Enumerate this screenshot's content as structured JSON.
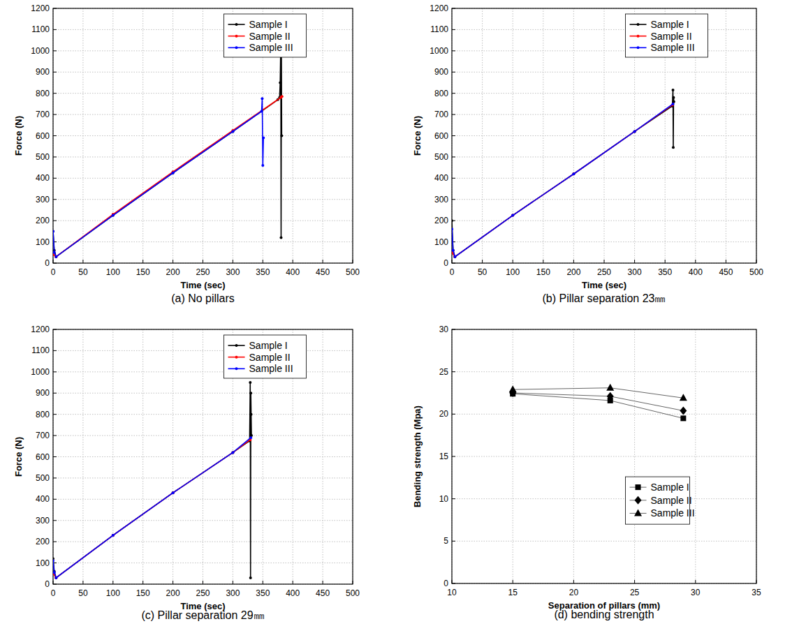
{
  "chart_data": [
    {
      "type": "line",
      "title": "(a) No pillars",
      "x_label": "Time (sec)",
      "y_label": "Force (N)",
      "xlim": [
        0,
        500
      ],
      "xticks": [
        0,
        50,
        100,
        150,
        200,
        250,
        300,
        350,
        400,
        450,
        500
      ],
      "ylim": [
        0,
        1200
      ],
      "yticks": [
        0,
        100,
        200,
        300,
        400,
        500,
        600,
        700,
        800,
        900,
        1000,
        1100,
        1200
      ],
      "grid": true,
      "legend": "upper center",
      "series": [
        {
          "name": "Sample I",
          "color": "#000000",
          "marker": "circle",
          "x": [
            0,
            2,
            5,
            100,
            200,
            300,
            375,
            378,
            379,
            380,
            380.5,
            381,
            381.5
          ],
          "values": [
            150,
            60,
            30,
            225,
            425,
            620,
            770,
            780,
            850,
            1040,
            120,
            1000,
            600
          ]
        },
        {
          "name": "Sample II",
          "color": "#ff0000",
          "marker": "circle",
          "x": [
            0,
            5,
            100,
            200,
            300,
            380,
            382
          ],
          "values": [
            40,
            30,
            230,
            430,
            625,
            780,
            785
          ]
        },
        {
          "name": "Sample III",
          "color": "#0000ff",
          "marker": "circle",
          "x": [
            0,
            2,
            5,
            100,
            200,
            300,
            348,
            349,
            350,
            351
          ],
          "values": [
            150,
            50,
            30,
            225,
            425,
            620,
            715,
            775,
            460,
            590
          ]
        }
      ]
    },
    {
      "type": "line",
      "title": "(b) Pillar separation 23㎜",
      "x_label": "Time (sec)",
      "y_label": "Force (N)",
      "xlim": [
        0,
        500
      ],
      "xticks": [
        0,
        50,
        100,
        150,
        200,
        250,
        300,
        350,
        400,
        450,
        500
      ],
      "ylim": [
        0,
        1200
      ],
      "yticks": [
        0,
        100,
        200,
        300,
        400,
        500,
        600,
        700,
        800,
        900,
        1000,
        1100,
        1200
      ],
      "grid": true,
      "legend": "upper center",
      "series": [
        {
          "name": "Sample I",
          "color": "#000000",
          "marker": "circle",
          "x": [
            0,
            2,
            5,
            100,
            200,
            300,
            362,
            363,
            363.5,
            364,
            364.5
          ],
          "values": [
            200,
            60,
            30,
            225,
            420,
            620,
            740,
            815,
            545,
            780,
            760
          ]
        },
        {
          "name": "Sample II",
          "color": "#ff0000",
          "marker": "circle",
          "x": [
            0,
            5,
            100,
            200,
            300,
            362
          ],
          "values": [
            50,
            30,
            225,
            420,
            620,
            745
          ]
        },
        {
          "name": "Sample III",
          "color": "#0000ff",
          "marker": "circle",
          "x": [
            0,
            2,
            5,
            100,
            200,
            300,
            363
          ],
          "values": [
            160,
            60,
            30,
            225,
            420,
            620,
            750
          ]
        }
      ]
    },
    {
      "type": "line",
      "title": "(c) Pillar separation 29㎜",
      "x_label": "Time (sec)",
      "y_label": "Force (N)",
      "xlim": [
        0,
        500
      ],
      "xticks": [
        0,
        50,
        100,
        150,
        200,
        250,
        300,
        350,
        400,
        450,
        500
      ],
      "ylim": [
        0,
        1200
      ],
      "yticks": [
        0,
        100,
        200,
        300,
        400,
        500,
        600,
        700,
        800,
        900,
        1000,
        1100,
        1200
      ],
      "grid": true,
      "legend": "upper right",
      "series": [
        {
          "name": "Sample I",
          "color": "#000000",
          "marker": "circle",
          "x": [
            0,
            2,
            5,
            100,
            200,
            300,
            328,
            329,
            329.5,
            330,
            330.5,
            331
          ],
          "values": [
            120,
            60,
            30,
            230,
            430,
            620,
            675,
            950,
            30,
            900,
            800,
            700
          ]
        },
        {
          "name": "Sample II",
          "color": "#ff0000",
          "marker": "circle",
          "x": [
            0,
            5,
            100,
            200,
            300,
            329
          ],
          "values": [
            50,
            30,
            230,
            430,
            620,
            680
          ]
        },
        {
          "name": "Sample III",
          "color": "#0000ff",
          "marker": "circle",
          "x": [
            0,
            2,
            5,
            100,
            200,
            300,
            330
          ],
          "values": [
            110,
            55,
            30,
            230,
            430,
            620,
            690
          ]
        }
      ]
    },
    {
      "type": "line",
      "title": "(d) bending strength",
      "x_label": "Separation of pillars (mm)",
      "y_label": "Bending strength (Mpa)",
      "xlim": [
        10,
        35
      ],
      "xticks": [
        10,
        15,
        20,
        25,
        30,
        35
      ],
      "ylim": [
        0,
        30
      ],
      "yticks": [
        0,
        5,
        10,
        15,
        20,
        25,
        30
      ],
      "grid": true,
      "legend": "lower right",
      "series": [
        {
          "name": "Sample I",
          "color": "#000000",
          "marker": "square",
          "x": [
            15,
            23,
            29
          ],
          "values": [
            22.4,
            21.6,
            19.5
          ]
        },
        {
          "name": "Sample II",
          "color": "#000000",
          "marker": "diamond",
          "x": [
            15,
            23,
            29
          ],
          "values": [
            22.5,
            22.1,
            20.4
          ]
        },
        {
          "name": "Sample III",
          "color": "#000000",
          "marker": "triangle",
          "x": [
            15,
            23,
            29
          ],
          "values": [
            22.9,
            23.1,
            21.9
          ]
        }
      ]
    }
  ]
}
